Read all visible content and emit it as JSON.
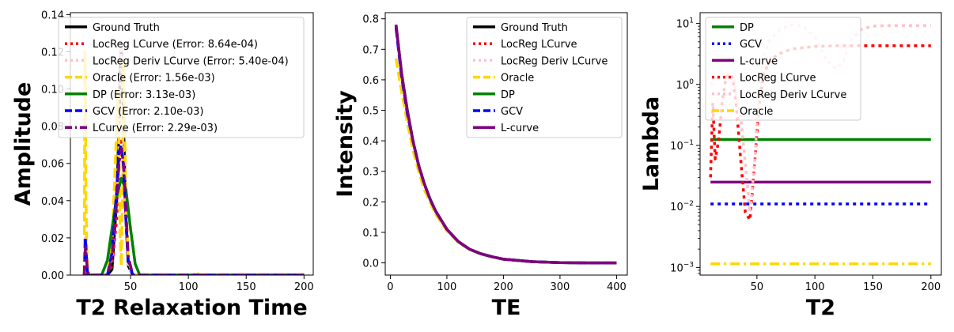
{
  "chart_data": [
    {
      "type": "line",
      "xlabel": "T2 Relaxation Time",
      "ylabel": "Amplitude",
      "xlim": [
        -2,
        208
      ],
      "ylim": [
        0,
        0.141
      ],
      "xticks": [
        {
          "v": 50,
          "label": "50"
        },
        {
          "v": 100,
          "label": "100"
        },
        {
          "v": 150,
          "label": "150"
        },
        {
          "v": 200,
          "label": "200"
        }
      ],
      "yticks": [
        {
          "v": 0,
          "label": "0.00"
        },
        {
          "v": 0.02,
          "label": "0.02"
        },
        {
          "v": 0.04,
          "label": "0.04"
        },
        {
          "v": 0.06,
          "label": "0.06"
        },
        {
          "v": 0.08,
          "label": "0.08"
        },
        {
          "v": 0.1,
          "label": "0.10"
        },
        {
          "v": 0.12,
          "label": "0.12"
        },
        {
          "v": 0.14,
          "label": "0.14"
        }
      ],
      "legend": "upper-left",
      "series": [
        {
          "name": "Ground Truth",
          "color": "#000000",
          "dash": "solid",
          "x": [
            10,
            30,
            34,
            38,
            40,
            41,
            42,
            43,
            44,
            46,
            48,
            52,
            60,
            100,
            200
          ],
          "y": [
            0,
            0,
            0.003,
            0.04,
            0.08,
            0.11,
            0.122,
            0.11,
            0.08,
            0.03,
            0.005,
            0,
            0,
            0,
            0
          ]
        },
        {
          "name": "LocReg LCurve (Error: 8.64e-04)",
          "color": "#ff0000",
          "dash": "dotted",
          "x": [
            10,
            11,
            12,
            13,
            14,
            30,
            34,
            38,
            40,
            42,
            44,
            46,
            48,
            52,
            60,
            200
          ],
          "y": [
            0,
            0.018,
            0.01,
            0.003,
            0,
            0,
            0.005,
            0.03,
            0.06,
            0.072,
            0.06,
            0.03,
            0.008,
            0,
            0,
            0
          ]
        },
        {
          "name": "LocReg Deriv LCurve (Error: 5.40e-04)",
          "color": "#ffc0cb",
          "dash": "dotted",
          "x": [
            10,
            11,
            12,
            13,
            30,
            34,
            38,
            40,
            42,
            44,
            46,
            48,
            52,
            60,
            200
          ],
          "y": [
            0,
            0.02,
            0.01,
            0,
            0,
            0.01,
            0.04,
            0.07,
            0.125,
            0.07,
            0.03,
            0.005,
            0,
            0,
            0
          ]
        },
        {
          "name": "Oracle (Error: 1.56e-03)",
          "color": "#ffd700",
          "dash": "dashed",
          "x": [
            10,
            10.5,
            11,
            11.5,
            12,
            13,
            14,
            30,
            34,
            38,
            39,
            40,
            41,
            42,
            43,
            44,
            46,
            48,
            52,
            60,
            105,
            107,
            109,
            200
          ],
          "y": [
            0,
            0.12,
            0.1,
            0.04,
            0.02,
            0,
            0,
            0,
            0.015,
            0.08,
            0.1,
            0.07,
            0.02,
            0.005,
            0.04,
            0.115,
            0.04,
            0.008,
            0,
            0,
            0,
            0.002,
            0,
            0
          ]
        },
        {
          "name": "DP (Error: 3.13e-03)",
          "color": "#008000",
          "dash": "solid",
          "x": [
            10,
            25,
            30,
            34,
            38,
            42,
            46,
            50,
            54,
            58,
            200
          ],
          "y": [
            0,
            0,
            0.008,
            0.025,
            0.042,
            0.052,
            0.046,
            0.025,
            0.006,
            0,
            0
          ]
        },
        {
          "name": "GCV (Error: 2.10e-03)",
          "color": "#0000ff",
          "dash": "dashed",
          "x": [
            10,
            11,
            12,
            13,
            30,
            34,
            38,
            40,
            42,
            44,
            46,
            48,
            52,
            60,
            200
          ],
          "y": [
            0,
            0.02,
            0.008,
            0,
            0,
            0.012,
            0.045,
            0.066,
            0.07,
            0.058,
            0.03,
            0.008,
            0,
            0,
            0
          ]
        },
        {
          "name": "LCurve (Error: 2.29e-03)",
          "color": "#800080",
          "dash": "dashdot",
          "x": [
            10,
            11,
            12,
            13,
            30,
            34,
            38,
            40,
            42,
            44,
            46,
            48,
            52,
            60,
            200
          ],
          "y": [
            0,
            0.015,
            0.008,
            0,
            0,
            0.01,
            0.04,
            0.06,
            0.068,
            0.06,
            0.035,
            0.01,
            0,
            0,
            0
          ]
        }
      ]
    },
    {
      "type": "line",
      "xlabel": "TE",
      "ylabel": "Intensity",
      "xlim": [
        -9,
        419
      ],
      "ylim": [
        -0.04,
        0.82
      ],
      "xticks": [
        {
          "v": 0,
          "label": "0"
        },
        {
          "v": 100,
          "label": "100"
        },
        {
          "v": 200,
          "label": "200"
        },
        {
          "v": 300,
          "label": "300"
        },
        {
          "v": 400,
          "label": "400"
        }
      ],
      "yticks": [
        {
          "v": 0.0,
          "label": "0.0"
        },
        {
          "v": 0.1,
          "label": "0.1"
        },
        {
          "v": 0.2,
          "label": "0.2"
        },
        {
          "v": 0.3,
          "label": "0.3"
        },
        {
          "v": 0.4,
          "label": "0.4"
        },
        {
          "v": 0.5,
          "label": "0.5"
        },
        {
          "v": 0.6,
          "label": "0.6"
        },
        {
          "v": 0.7,
          "label": "0.7"
        },
        {
          "v": 0.8,
          "label": "0.8"
        }
      ],
      "legend": "upper-right",
      "series": [
        {
          "name": "Ground Truth",
          "color": "#000000",
          "dash": "solid",
          "x": [
            10,
            20,
            30,
            40,
            50,
            60,
            70,
            80,
            100,
            120,
            140,
            160,
            180,
            200,
            250,
            300,
            350,
            400
          ],
          "y": [
            0.78,
            0.62,
            0.5,
            0.4,
            0.32,
            0.26,
            0.21,
            0.17,
            0.11,
            0.07,
            0.045,
            0.03,
            0.02,
            0.012,
            0.004,
            0.001,
            0,
            0
          ]
        },
        {
          "name": "LocReg LCurve",
          "color": "#ff0000",
          "dash": "dotted",
          "x": [
            10,
            20,
            30,
            40,
            50,
            60,
            70,
            80,
            100,
            120,
            140,
            160,
            180,
            200,
            250,
            300,
            350,
            400
          ],
          "y": [
            0.78,
            0.62,
            0.5,
            0.4,
            0.32,
            0.26,
            0.21,
            0.17,
            0.11,
            0.07,
            0.045,
            0.03,
            0.02,
            0.012,
            0.004,
            0.001,
            0,
            0
          ]
        },
        {
          "name": "LocReg Deriv LCurve",
          "color": "#ffc0cb",
          "dash": "dotted",
          "x": [
            10,
            20,
            30,
            40,
            50,
            60,
            70,
            80,
            100,
            120,
            140,
            160,
            180,
            200,
            250,
            300,
            350,
            400
          ],
          "y": [
            0.78,
            0.62,
            0.5,
            0.4,
            0.32,
            0.26,
            0.21,
            0.17,
            0.11,
            0.07,
            0.045,
            0.03,
            0.02,
            0.012,
            0.004,
            0.001,
            0,
            0
          ]
        },
        {
          "name": "Oracle",
          "color": "#ffd700",
          "dash": "dashed",
          "x": [
            10,
            20,
            30,
            40,
            50,
            60,
            70,
            80,
            100,
            120,
            140,
            160,
            180,
            200,
            250,
            300,
            350,
            400
          ],
          "y": [
            0.67,
            0.56,
            0.46,
            0.37,
            0.3,
            0.24,
            0.2,
            0.16,
            0.105,
            0.068,
            0.044,
            0.029,
            0.019,
            0.012,
            0.004,
            0.001,
            0,
            0
          ]
        },
        {
          "name": "DP",
          "color": "#008000",
          "dash": "solid",
          "x": [
            10,
            20,
            30,
            40,
            50,
            60,
            70,
            80,
            100,
            120,
            140,
            160,
            180,
            200,
            250,
            300,
            350,
            400
          ],
          "y": [
            0.78,
            0.62,
            0.5,
            0.4,
            0.32,
            0.26,
            0.21,
            0.17,
            0.11,
            0.07,
            0.045,
            0.03,
            0.02,
            0.012,
            0.004,
            0.001,
            0,
            0
          ]
        },
        {
          "name": "GCV",
          "color": "#0000ff",
          "dash": "dashed",
          "x": [
            10,
            20,
            30,
            40,
            50,
            60,
            70,
            80,
            100,
            120,
            140,
            160,
            180,
            200,
            250,
            300,
            350,
            400
          ],
          "y": [
            0.77,
            0.61,
            0.49,
            0.4,
            0.32,
            0.26,
            0.21,
            0.17,
            0.11,
            0.07,
            0.045,
            0.03,
            0.02,
            0.012,
            0.004,
            0.001,
            0,
            0
          ]
        },
        {
          "name": "L-curve",
          "color": "#800080",
          "dash": "solid",
          "x": [
            10,
            20,
            30,
            40,
            50,
            60,
            70,
            80,
            100,
            120,
            140,
            160,
            180,
            200,
            250,
            300,
            350,
            400
          ],
          "y": [
            0.78,
            0.62,
            0.5,
            0.4,
            0.32,
            0.26,
            0.21,
            0.17,
            0.11,
            0.07,
            0.045,
            0.03,
            0.02,
            0.012,
            0.004,
            0.001,
            0,
            0
          ]
        }
      ]
    },
    {
      "type": "line",
      "xlabel": "T2",
      "ylabel": "Lambda",
      "yscale": "log",
      "xlim": [
        1,
        209
      ],
      "ylim": [
        0.00075,
        15
      ],
      "xticks": [
        {
          "v": 50,
          "label": "50"
        },
        {
          "v": 100,
          "label": "100"
        },
        {
          "v": 150,
          "label": "150"
        },
        {
          "v": 200,
          "label": "200"
        }
      ],
      "yticks": [
        {
          "v": 0.001,
          "base": "10",
          "exp": "−3"
        },
        {
          "v": 0.01,
          "base": "10",
          "exp": "−2"
        },
        {
          "v": 0.1,
          "base": "10",
          "exp": "−1"
        },
        {
          "v": 1,
          "base": "10",
          "exp": "0"
        },
        {
          "v": 10,
          "base": "10",
          "exp": "1"
        }
      ],
      "legend": "upper-left",
      "series": [
        {
          "name": "DP",
          "color": "#008000",
          "dash": "solid",
          "x": [
            10,
            200
          ],
          "y": [
            0.125,
            0.125
          ]
        },
        {
          "name": "GCV",
          "color": "#0000ff",
          "dash": "dotted",
          "x": [
            10,
            200
          ],
          "y": [
            0.011,
            0.011
          ]
        },
        {
          "name": "L-curve",
          "color": "#800080",
          "dash": "solid",
          "x": [
            10,
            200
          ],
          "y": [
            0.025,
            0.025
          ]
        },
        {
          "name": "LocReg LCurve",
          "color": "#ff0000",
          "dash": "dotted",
          "x": [
            10,
            12,
            14,
            17,
            20,
            23,
            26,
            29,
            32,
            36,
            40,
            44,
            48,
            52,
            56,
            60,
            65,
            70,
            75,
            80,
            90,
            100,
            120,
            150,
            200
          ],
          "y": [
            0.03,
            0.5,
            0.06,
            0.12,
            0.5,
            1.2,
            1.5,
            1.3,
            0.5,
            0.06,
            0.008,
            0.006,
            0.05,
            0.5,
            1.5,
            2.2,
            2.8,
            3.2,
            3.5,
            3.8,
            4.0,
            4.2,
            4.3,
            4.3,
            4.3
          ]
        },
        {
          "name": "LocReg Deriv LCurve",
          "color": "#ffc0cb",
          "dash": "dotted",
          "x": [
            10,
            20,
            30,
            36,
            40,
            44,
            48,
            52,
            56,
            60,
            70,
            80,
            90,
            100,
            110,
            118,
            125,
            130,
            140,
            150,
            160,
            180,
            200
          ],
          "y": [
            1,
            1.5,
            1.2,
            0.3,
            0.05,
            0.008,
            0.05,
            1,
            3,
            5,
            8,
            9.5,
            9,
            6,
            2.5,
            1.8,
            2.5,
            5,
            8,
            9,
            9.2,
            9.2,
            9.2
          ]
        },
        {
          "name": "Oracle",
          "color": "#ffd700",
          "dash": "dashdot",
          "x": [
            10,
            200
          ],
          "y": [
            0.00115,
            0.00115
          ]
        }
      ]
    }
  ]
}
